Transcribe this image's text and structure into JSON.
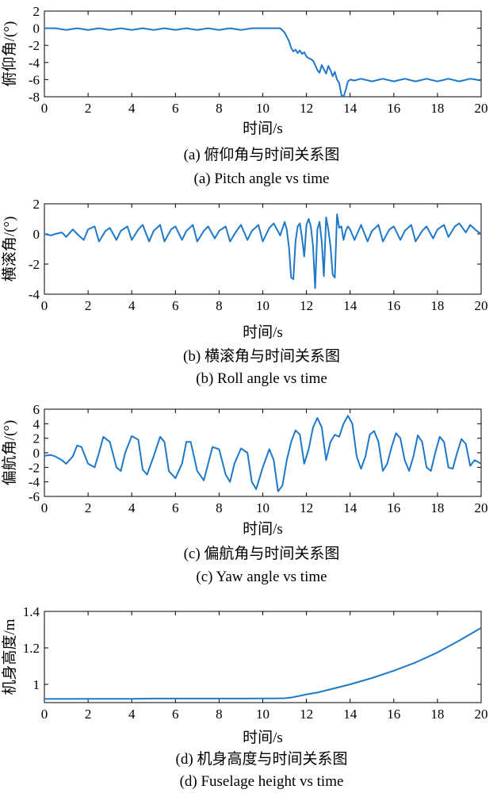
{
  "chart_data": [
    {
      "type": "line",
      "xlabel": "时间/s",
      "ylabel": "俯仰角/(°)",
      "caption_cn": "(a) 俯仰角与时间关系图",
      "caption_en": "(a) Pitch angle vs time",
      "xlim": [
        0,
        20
      ],
      "ylim": [
        -8,
        2
      ],
      "xticks": [
        0,
        2,
        4,
        6,
        8,
        10,
        12,
        14,
        16,
        18,
        20
      ],
      "yticks": [
        -8,
        -6,
        -4,
        -2,
        0,
        2
      ],
      "color": "#1f78c8",
      "series": [
        {
          "x": [
            0,
            0.5,
            1,
            1.5,
            2,
            2.5,
            3,
            3.5,
            4,
            4.5,
            5,
            5.5,
            6,
            6.5,
            7,
            7.5,
            8,
            8.5,
            9,
            9.5,
            10,
            10.5,
            10.8,
            11,
            11.1,
            11.2,
            11.3,
            11.4,
            11.5,
            11.6,
            11.7,
            11.8,
            11.9,
            12,
            12.1,
            12.2,
            12.3,
            12.4,
            12.5,
            12.6,
            12.7,
            12.8,
            12.9,
            13,
            13.1,
            13.2,
            13.3,
            13.4,
            13.5,
            13.6,
            13.7,
            13.8,
            13.9,
            14,
            14.2,
            14.5,
            15,
            15.5,
            16,
            16.5,
            17,
            17.5,
            18,
            18.5,
            19,
            19.5,
            20
          ],
          "y": [
            0,
            0,
            -0.2,
            0,
            -0.2,
            0,
            -0.2,
            0,
            -0.2,
            0,
            -0.2,
            0,
            -0.2,
            0,
            -0.2,
            0,
            -0.2,
            0,
            -0.2,
            0,
            0,
            0,
            0,
            -0.5,
            -1,
            -1.5,
            -2.3,
            -2.7,
            -2.5,
            -2.9,
            -2.6,
            -3,
            -2.8,
            -3.3,
            -3.5,
            -3.6,
            -3.8,
            -4.3,
            -4.9,
            -5.2,
            -4.3,
            -4.8,
            -5.3,
            -4.4,
            -4.9,
            -5.6,
            -5.1,
            -6,
            -6.4,
            -7.8,
            -8,
            -7.2,
            -6.2,
            -6,
            -6.1,
            -5.9,
            -6.2,
            -5.9,
            -6.2,
            -5.9,
            -6.2,
            -5.9,
            -6.2,
            -5.9,
            -6.2,
            -5.9,
            -6.1
          ]
        }
      ]
    },
    {
      "type": "line",
      "xlabel": "时间/s",
      "ylabel": "横滚角/(°)",
      "caption_cn": "(b) 横滚角与时间关系图",
      "caption_en": "(b) Roll angle vs time",
      "xlim": [
        0,
        20
      ],
      "ylim": [
        -4,
        2
      ],
      "xticks": [
        0,
        2,
        4,
        6,
        8,
        10,
        12,
        14,
        16,
        18,
        20
      ],
      "yticks": [
        -4,
        -2,
        0,
        2
      ],
      "color": "#1f78c8",
      "series": [
        {
          "x": [
            0,
            0.3,
            0.5,
            0.8,
            1,
            1.3,
            1.5,
            1.8,
            2,
            2.3,
            2.5,
            2.8,
            3,
            3.3,
            3.5,
            3.8,
            4,
            4.3,
            4.5,
            4.8,
            5,
            5.3,
            5.5,
            5.8,
            6,
            6.3,
            6.5,
            6.8,
            7,
            7.3,
            7.5,
            7.8,
            8,
            8.3,
            8.5,
            8.8,
            9,
            9.3,
            9.5,
            9.8,
            10,
            10.3,
            10.5,
            10.8,
            11,
            11.1,
            11.2,
            11.3,
            11.4,
            11.5,
            11.6,
            11.7,
            11.8,
            11.9,
            12,
            12.1,
            12.2,
            12.3,
            12.4,
            12.5,
            12.6,
            12.7,
            12.8,
            12.9,
            13,
            13.1,
            13.2,
            13.3,
            13.4,
            13.5,
            13.6,
            13.7,
            13.8,
            13.9,
            14,
            14.2,
            14.5,
            14.8,
            15,
            15.3,
            15.5,
            15.8,
            16,
            16.3,
            16.5,
            16.8,
            17,
            17.3,
            17.5,
            17.8,
            18,
            18.3,
            18.5,
            18.8,
            19,
            19.3,
            19.5,
            19.8,
            20
          ],
          "y": [
            0,
            -0.1,
            0,
            0.1,
            -0.2,
            0.3,
            0,
            -0.4,
            0.3,
            0.5,
            -0.5,
            0.2,
            0.4,
            -0.4,
            0.2,
            0.5,
            -0.4,
            0.3,
            0.6,
            -0.5,
            0.2,
            0.6,
            -0.5,
            0.3,
            0.5,
            -0.4,
            0.2,
            0.6,
            -0.5,
            0.2,
            0.5,
            -0.3,
            0.2,
            0.5,
            -0.5,
            0.2,
            0.6,
            -0.4,
            0.2,
            0.6,
            -0.5,
            0.4,
            0.7,
            -0.1,
            0.8,
            0.3,
            -0.9,
            -2.9,
            -3,
            -0.5,
            0.5,
            0.7,
            -0.3,
            -1.5,
            0.6,
            1.0,
            0.5,
            -0.8,
            -3.6,
            0.3,
            0.8,
            -0.5,
            -2.8,
            1.1,
            0.3,
            -0.8,
            -2.7,
            -2.9,
            1.3,
            0.4,
            0.5,
            -0.4,
            0.2,
            0.5,
            0.3,
            -0.4,
            0.6,
            -0.5,
            0.2,
            0.6,
            -0.5,
            0.3,
            0.5,
            -0.4,
            0.2,
            0.6,
            -0.5,
            0.2,
            0.5,
            -0.3,
            0.3,
            0.6,
            -0.2,
            0.5,
            0.7,
            0.1,
            0.6,
            0.2,
            0
          ]
        }
      ]
    },
    {
      "type": "line",
      "xlabel": "时间/s",
      "ylabel": "偏航角/(°)",
      "caption_cn": "(c) 偏航角与时间关系图",
      "caption_en": "(c) Yaw angle vs time",
      "xlim": [
        0,
        20
      ],
      "ylim": [
        -6,
        6
      ],
      "xticks": [
        0,
        2,
        4,
        6,
        8,
        10,
        12,
        14,
        16,
        18,
        20
      ],
      "yticks": [
        -6,
        -4,
        -2,
        0,
        2,
        4,
        6
      ],
      "color": "#1f78c8",
      "series": [
        {
          "x": [
            0,
            0.3,
            0.5,
            0.8,
            1,
            1.3,
            1.5,
            1.7,
            2,
            2.3,
            2.5,
            2.7,
            3,
            3.3,
            3.5,
            3.7,
            4,
            4.3,
            4.5,
            4.7,
            5,
            5.3,
            5.5,
            5.7,
            6,
            6.3,
            6.5,
            6.7,
            7,
            7.3,
            7.5,
            7.7,
            8,
            8.3,
            8.5,
            8.7,
            9,
            9.3,
            9.5,
            9.7,
            10,
            10.3,
            10.5,
            10.7,
            10.9,
            11.1,
            11.3,
            11.5,
            11.7,
            11.9,
            12.1,
            12.3,
            12.5,
            12.7,
            12.9,
            13.1,
            13.3,
            13.5,
            13.7,
            13.9,
            14.1,
            14.3,
            14.5,
            14.7,
            14.9,
            15.1,
            15.3,
            15.5,
            15.7,
            15.9,
            16.1,
            16.3,
            16.5,
            16.7,
            16.9,
            17.1,
            17.3,
            17.5,
            17.7,
            17.9,
            18.1,
            18.3,
            18.5,
            18.7,
            18.9,
            19.1,
            19.3,
            19.5,
            19.7,
            20
          ],
          "y": [
            -0.4,
            -0.3,
            -0.5,
            -1,
            -1.5,
            -0.5,
            1,
            0.8,
            -1.5,
            -2,
            0,
            2.2,
            1.5,
            -2,
            -2.5,
            0,
            2.3,
            1.8,
            -2.3,
            -3,
            -0.5,
            2.2,
            1.5,
            -2.5,
            -3.5,
            -1.5,
            1.5,
            1.5,
            -2.5,
            -3.8,
            -1.5,
            0.8,
            0.5,
            -3,
            -4,
            -1.5,
            0.6,
            0,
            -4,
            -5,
            -2,
            0.5,
            -1,
            -5.3,
            -4.5,
            -1,
            1.5,
            3.1,
            2.5,
            -1.5,
            0.5,
            3.5,
            4.8,
            3.5,
            -1,
            1.5,
            2.5,
            2.2,
            4,
            5.1,
            4,
            -0.5,
            -2.2,
            -0.5,
            2.5,
            3,
            1.5,
            -2.5,
            -1.5,
            0.8,
            2.7,
            2,
            -1,
            -2.5,
            -0.5,
            2.4,
            1.5,
            -2,
            -2.5,
            0,
            2.2,
            1.5,
            -2,
            -2.2,
            0,
            1.9,
            1.2,
            -1.8,
            -1,
            -1.5
          ]
        }
      ]
    },
    {
      "type": "line",
      "xlabel": "时间/s",
      "ylabel": "机身高度/m",
      "caption_cn": "(d) 机身高度与时间关系图",
      "caption_en": "(d) Fuselage height vs time",
      "xlim": [
        0,
        20
      ],
      "ylim": [
        0.9,
        1.4
      ],
      "xticks": [
        0,
        2,
        4,
        6,
        8,
        10,
        12,
        14,
        16,
        18,
        20
      ],
      "yticks": [
        1,
        1.2,
        1.4
      ],
      "color": "#1f78c8",
      "series": [
        {
          "x": [
            0,
            1,
            2,
            3,
            4,
            5,
            6,
            7,
            8,
            9,
            10,
            10.5,
            11,
            11.3,
            11.6,
            12,
            12.5,
            13,
            13.5,
            14,
            15,
            16,
            17,
            18,
            19,
            20
          ],
          "y": [
            0.92,
            0.92,
            0.921,
            0.921,
            0.921,
            0.922,
            0.922,
            0.922,
            0.922,
            0.922,
            0.923,
            0.923,
            0.924,
            0.928,
            0.935,
            0.945,
            0.955,
            0.97,
            0.985,
            1.0,
            1.035,
            1.075,
            1.12,
            1.175,
            1.24,
            1.31
          ]
        }
      ]
    }
  ]
}
